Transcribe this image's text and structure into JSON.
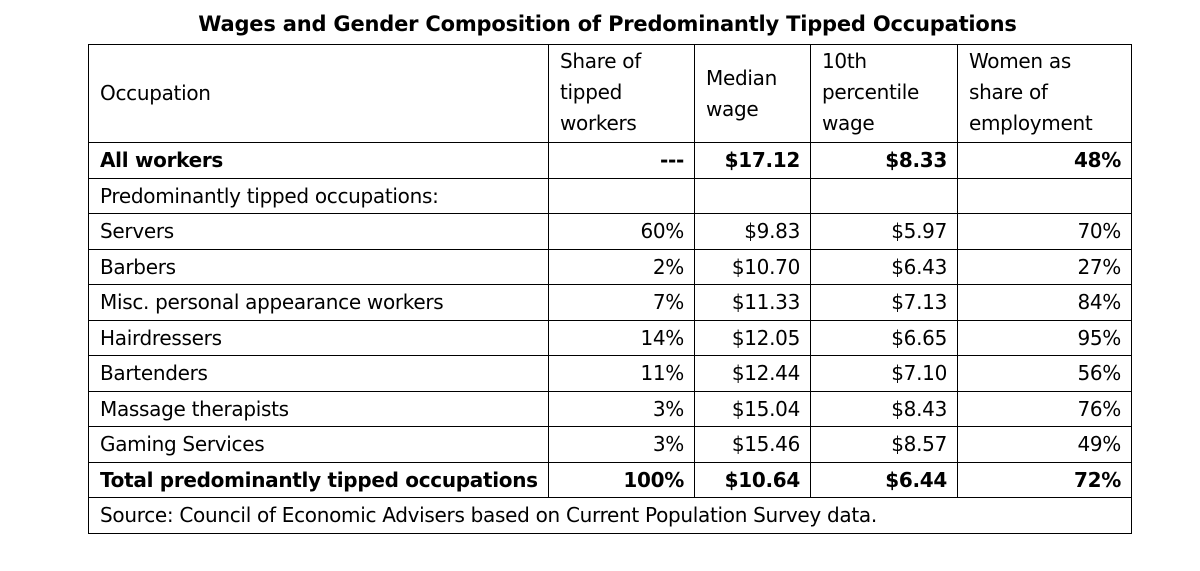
{
  "title": "Wages and Gender Composition of Predominantly Tipped Occupations",
  "source": "Source: Council of Economic Advisers based on Current Population Survey data.",
  "headers": {
    "occupation": "Occupation",
    "share": [
      "Share of",
      "tipped",
      "workers"
    ],
    "median": [
      "Median",
      "wage"
    ],
    "p10": [
      "10th",
      "percentile",
      "wage"
    ],
    "women": [
      "Women as",
      "share of",
      "employment"
    ]
  },
  "rows": [
    {
      "occupation": "All workers",
      "share": "---",
      "median": "$17.12",
      "p10": "$8.33",
      "women": "48%",
      "bold": true
    },
    {
      "occupation": "Predominantly tipped occupations:",
      "share": "",
      "median": "",
      "p10": "",
      "women": "",
      "bold": false
    },
    {
      "occupation": "Servers",
      "share": "60%",
      "median": "$9.83",
      "p10": "$5.97",
      "women": "70%",
      "bold": false
    },
    {
      "occupation": "Barbers",
      "share": "2%",
      "median": "$10.70",
      "p10": "$6.43",
      "women": "27%",
      "bold": false
    },
    {
      "occupation": "Misc. personal appearance workers",
      "share": "7%",
      "median": "$11.33",
      "p10": "$7.13",
      "women": "84%",
      "bold": false
    },
    {
      "occupation": "Hairdressers",
      "share": "14%",
      "median": "$12.05",
      "p10": "$6.65",
      "women": "95%",
      "bold": false
    },
    {
      "occupation": "Bartenders",
      "share": "11%",
      "median": "$12.44",
      "p10": "$7.10",
      "women": "56%",
      "bold": false
    },
    {
      "occupation": "Massage therapists",
      "share": "3%",
      "median": "$15.04",
      "p10": "$8.43",
      "women": "76%",
      "bold": false
    },
    {
      "occupation": "Gaming Services",
      "share": "3%",
      "median": "$15.46",
      "p10": "$8.57",
      "women": "49%",
      "bold": false
    },
    {
      "occupation": "Total predominantly tipped occupations",
      "share": "100%",
      "median": "$10.64",
      "p10": "$6.44",
      "women": "72%",
      "bold": true
    }
  ],
  "chart_data": {
    "type": "table",
    "title": "Wages and Gender Composition of Predominantly Tipped Occupations",
    "columns": [
      "Occupation",
      "Share of tipped workers",
      "Median wage",
      "10th percentile wage",
      "Women as share of employment"
    ],
    "rows": [
      [
        "All workers",
        "---",
        "$17.12",
        "$8.33",
        "48%"
      ],
      [
        "Predominantly tipped occupations:",
        "",
        "",
        "",
        ""
      ],
      [
        "Servers",
        "60%",
        "$9.83",
        "$5.97",
        "70%"
      ],
      [
        "Barbers",
        "2%",
        "$10.70",
        "$6.43",
        "27%"
      ],
      [
        "Misc. personal appearance workers",
        "7%",
        "$11.33",
        "$7.13",
        "84%"
      ],
      [
        "Hairdressers",
        "14%",
        "$12.05",
        "$6.65",
        "95%"
      ],
      [
        "Bartenders",
        "11%",
        "$12.44",
        "$7.10",
        "56%"
      ],
      [
        "Massage therapists",
        "3%",
        "$15.04",
        "$8.43",
        "76%"
      ],
      [
        "Gaming Services",
        "3%",
        "$15.46",
        "$8.57",
        "49%"
      ],
      [
        "Total predominantly tipped occupations",
        "100%",
        "$10.64",
        "$6.44",
        "72%"
      ]
    ],
    "note": "Source: Council of Economic Advisers based on Current Population Survey data."
  }
}
